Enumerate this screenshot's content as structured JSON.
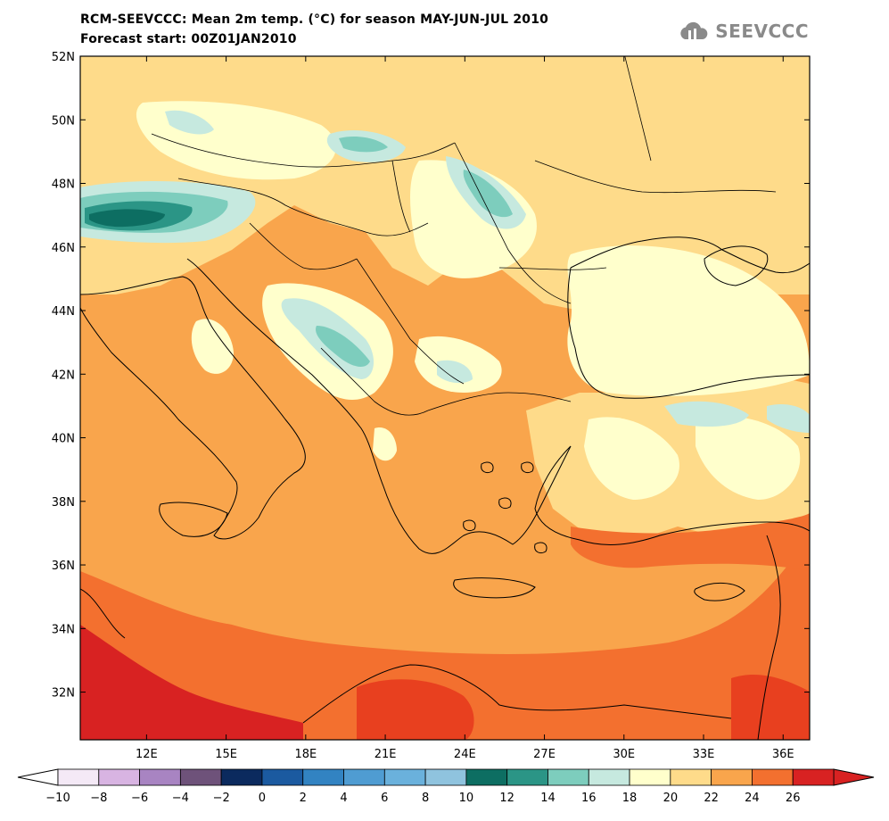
{
  "title": {
    "line1": "RCM-SEEVCCC: Mean 2m temp. (°C) for season MAY-JUN-JUL 2010",
    "line2": "Forecast start: 00Z01JAN2010"
  },
  "logo": {
    "text": "SEEVCCC",
    "icon": "cloud-icon",
    "color": "#8a8a8a"
  },
  "map": {
    "lon_range": [
      9.5,
      37.0
    ],
    "lat_range": [
      30.5,
      52.0
    ],
    "lon_ticks": [
      {
        "value": 12,
        "label": "12E"
      },
      {
        "value": 15,
        "label": "15E"
      },
      {
        "value": 18,
        "label": "18E"
      },
      {
        "value": 21,
        "label": "21E"
      },
      {
        "value": 24,
        "label": "24E"
      },
      {
        "value": 27,
        "label": "27E"
      },
      {
        "value": 30,
        "label": "30E"
      },
      {
        "value": 33,
        "label": "33E"
      },
      {
        "value": 36,
        "label": "36E"
      }
    ],
    "lat_ticks": [
      {
        "value": 52,
        "label": "52N"
      },
      {
        "value": 50,
        "label": "50N"
      },
      {
        "value": 48,
        "label": "48N"
      },
      {
        "value": 46,
        "label": "46N"
      },
      {
        "value": 44,
        "label": "44N"
      },
      {
        "value": 42,
        "label": "42N"
      },
      {
        "value": 40,
        "label": "40N"
      },
      {
        "value": 38,
        "label": "38N"
      },
      {
        "value": 36,
        "label": "36N"
      },
      {
        "value": 34,
        "label": "34N"
      },
      {
        "value": 32,
        "label": "32N"
      }
    ]
  },
  "colorbar": {
    "labels": [
      "-10",
      "-8",
      "-6",
      "-4",
      "-2",
      "0",
      "2",
      "4",
      "6",
      "8",
      "10",
      "12",
      "14",
      "16",
      "18",
      "20",
      "22",
      "24",
      "26"
    ],
    "colors": [
      "#f4e9f6",
      "#d8b4e2",
      "#a884c2",
      "#6e527a",
      "#0b2a5e",
      "#1b5aa0",
      "#3283c2",
      "#4f9cd2",
      "#6ab1dc",
      "#8fc3de",
      "#0d6e62",
      "#2b9586",
      "#7dcdbd",
      "#c6e9df",
      "#ffffcc",
      "#fedb8a",
      "#f9a54c",
      "#f3702f",
      "#d82222"
    ],
    "under_color": "#ffffff",
    "over_color": "#d82222"
  },
  "palette": {
    "t12": "#c6e9df",
    "t10": "#7dcdbd",
    "t8": "#2b9586",
    "t6": "#0d6e62",
    "t14": "#ffffcc",
    "t16": "#fedb8a",
    "t18": "#f9a54c",
    "t20": "#f3702f",
    "t22": "#e8401f",
    "t24": "#d82222"
  }
}
